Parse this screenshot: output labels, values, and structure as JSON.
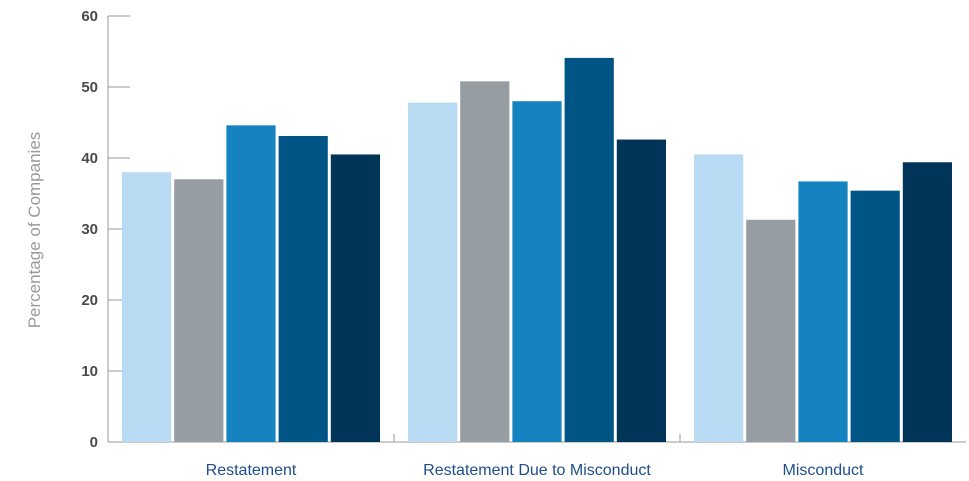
{
  "chart_data": {
    "type": "bar",
    "categories": [
      "Restatement",
      "Restatement Due to Misconduct",
      "Misconduct"
    ],
    "series": [
      {
        "values": [
          38,
          47.8,
          40.5
        ]
      },
      {
        "values": [
          37,
          50.8,
          31.3
        ]
      },
      {
        "values": [
          44.6,
          48,
          36.7
        ]
      },
      {
        "values": [
          43.1,
          54.1,
          35.4
        ]
      },
      {
        "values": [
          40.5,
          42.6,
          39.4
        ]
      }
    ],
    "colors": [
      "#b8daf3",
      "#979ea3",
      "#1483bf",
      "#015486",
      "#003558"
    ],
    "title": "",
    "xlabel": "",
    "ylabel": "Percentage of Companies",
    "ylim": [
      0,
      60
    ],
    "yticks": [
      "0",
      "10",
      "20",
      "30",
      "40",
      "50",
      "60"
    ],
    "grid": false,
    "legend": "none"
  }
}
